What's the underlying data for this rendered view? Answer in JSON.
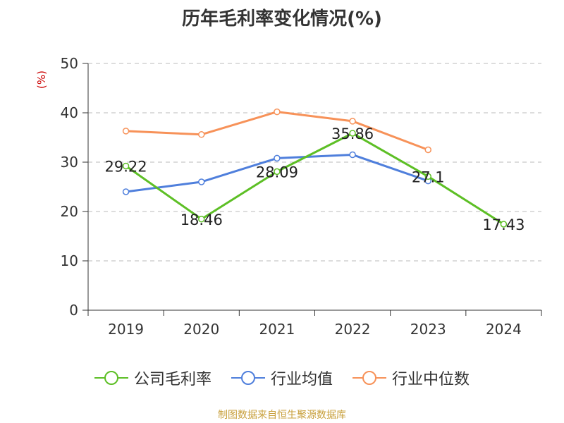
{
  "title": "历年毛利率变化情况(%)",
  "unit_label": "(%)",
  "source": "制图数据来自恒生聚源数据库",
  "chart_data": {
    "type": "line",
    "categories": [
      "2019",
      "2020",
      "2021",
      "2022",
      "2023",
      "2024"
    ],
    "ylim": [
      0,
      50
    ],
    "yticks": [
      0,
      10,
      20,
      30,
      40,
      50
    ],
    "grid": true,
    "legend_position": "bottom",
    "series": [
      {
        "name": "公司毛利率",
        "color": "#5dbf25",
        "values": [
          29.22,
          18.46,
          28.09,
          35.86,
          27.1,
          17.43
        ],
        "labels": [
          "29.22",
          "18.46",
          "28.09",
          "35.86",
          "27.1",
          "17.43"
        ]
      },
      {
        "name": "行业均值",
        "color": "#4f7fdc",
        "values": [
          24.0,
          26.0,
          30.8,
          31.5,
          26.2,
          null
        ]
      },
      {
        "name": "行业中位数",
        "color": "#f79259",
        "values": [
          36.3,
          35.6,
          40.2,
          38.3,
          32.5,
          null
        ]
      }
    ]
  }
}
